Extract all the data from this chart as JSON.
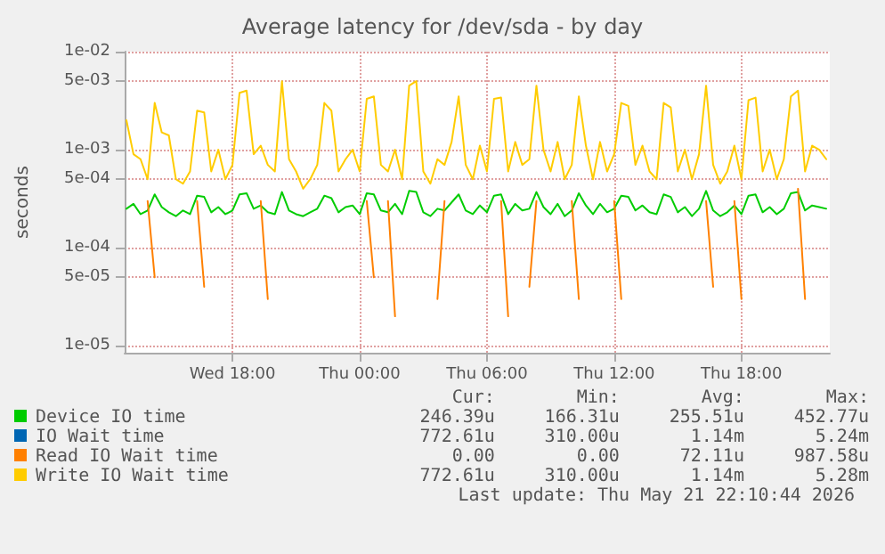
{
  "chart_data": {
    "type": "line",
    "title": "Average latency for /dev/sda - by day",
    "ylabel": "seconds",
    "log": "y",
    "grid": true,
    "legend": "bottom",
    "marker": "none",
    "line_style": "solid",
    "xlim": [
      "2026-05-20T12:55",
      "2026-05-21T22:10"
    ],
    "xticks": [
      {
        "value": "2026-05-20T18:00",
        "label": "Wed 18:00"
      },
      {
        "value": "2026-05-21T00:00",
        "label": "Thu 00:00"
      },
      {
        "value": "2026-05-21T06:00",
        "label": "Thu 06:00"
      },
      {
        "value": "2026-05-21T12:00",
        "label": "Thu 12:00"
      },
      {
        "value": "2026-05-21T18:00",
        "label": "Thu 18:00"
      }
    ],
    "ylim": [
      8.5e-06,
      0.01
    ],
    "yticks": [
      {
        "value": 1e-05,
        "label": "1e-05"
      },
      {
        "value": 5e-05,
        "label": "5e-05"
      },
      {
        "value": 0.0001,
        "label": "1e-04"
      },
      {
        "value": 0.0005,
        "label": "5e-04"
      },
      {
        "value": 0.001,
        "label": "1e-03"
      },
      {
        "value": 0.005,
        "label": "5e-03"
      },
      {
        "value": 0.01,
        "label": "1e-02"
      }
    ],
    "x": [
      "2026-05-20T13:00",
      "2026-05-20T13:20",
      "2026-05-20T13:40",
      "2026-05-20T14:00",
      "2026-05-20T14:20",
      "2026-05-20T14:40",
      "2026-05-20T15:00",
      "2026-05-20T15:20",
      "2026-05-20T15:40",
      "2026-05-20T16:00",
      "2026-05-20T16:20",
      "2026-05-20T16:40",
      "2026-05-20T17:00",
      "2026-05-20T17:20",
      "2026-05-20T17:40",
      "2026-05-20T18:00",
      "2026-05-20T18:20",
      "2026-05-20T18:40",
      "2026-05-20T19:00",
      "2026-05-20T19:20",
      "2026-05-20T19:40",
      "2026-05-20T20:00",
      "2026-05-20T20:20",
      "2026-05-20T20:40",
      "2026-05-20T21:00",
      "2026-05-20T21:20",
      "2026-05-20T21:40",
      "2026-05-20T22:00",
      "2026-05-20T22:20",
      "2026-05-20T22:40",
      "2026-05-20T23:00",
      "2026-05-20T23:20",
      "2026-05-20T23:40",
      "2026-05-21T00:00",
      "2026-05-21T00:20",
      "2026-05-21T00:40",
      "2026-05-21T01:00",
      "2026-05-21T01:20",
      "2026-05-21T01:40",
      "2026-05-21T02:00",
      "2026-05-21T02:20",
      "2026-05-21T02:40",
      "2026-05-21T03:00",
      "2026-05-21T03:20",
      "2026-05-21T03:40",
      "2026-05-21T04:00",
      "2026-05-21T04:20",
      "2026-05-21T04:40",
      "2026-05-21T05:00",
      "2026-05-21T05:20",
      "2026-05-21T05:40",
      "2026-05-21T06:00",
      "2026-05-21T06:20",
      "2026-05-21T06:40",
      "2026-05-21T07:00",
      "2026-05-21T07:20",
      "2026-05-21T07:40",
      "2026-05-21T08:00",
      "2026-05-21T08:20",
      "2026-05-21T08:40",
      "2026-05-21T09:00",
      "2026-05-21T09:20",
      "2026-05-21T09:40",
      "2026-05-21T10:00",
      "2026-05-21T10:20",
      "2026-05-21T10:40",
      "2026-05-21T11:00",
      "2026-05-21T11:20",
      "2026-05-21T11:40",
      "2026-05-21T12:00",
      "2026-05-21T12:20",
      "2026-05-21T12:40",
      "2026-05-21T13:00",
      "2026-05-21T13:20",
      "2026-05-21T13:40",
      "2026-05-21T14:00",
      "2026-05-21T14:20",
      "2026-05-21T14:40",
      "2026-05-21T15:00",
      "2026-05-21T15:20",
      "2026-05-21T15:40",
      "2026-05-21T16:00",
      "2026-05-21T16:20",
      "2026-05-21T16:40",
      "2026-05-21T17:00",
      "2026-05-21T17:20",
      "2026-05-21T17:40",
      "2026-05-21T18:00",
      "2026-05-21T18:20",
      "2026-05-21T18:40",
      "2026-05-21T19:00",
      "2026-05-21T19:20",
      "2026-05-21T19:40",
      "2026-05-21T20:00",
      "2026-05-21T20:20",
      "2026-05-21T20:40",
      "2026-05-21T21:00",
      "2026-05-21T21:20",
      "2026-05-21T21:40",
      "2026-05-21T22:00"
    ],
    "series": [
      {
        "name": "Device IO time",
        "color": "#00cc00",
        "values": [
          0.00025,
          0.00028,
          0.00022,
          0.00024,
          0.00035,
          0.00026,
          0.00023,
          0.00021,
          0.00024,
          0.00022,
          0.00034,
          0.00033,
          0.00023,
          0.00026,
          0.00022,
          0.00024,
          0.00035,
          0.00036,
          0.00025,
          0.00027,
          0.00023,
          0.00022,
          0.00037,
          0.00024,
          0.00022,
          0.00021,
          0.00023,
          0.00025,
          0.00034,
          0.00032,
          0.00023,
          0.00026,
          0.00027,
          0.00022,
          0.00036,
          0.00035,
          0.00024,
          0.00023,
          0.00028,
          0.00022,
          0.00038,
          0.00037,
          0.00023,
          0.00021,
          0.00025,
          0.00024,
          0.00029,
          0.00035,
          0.00024,
          0.00022,
          0.00027,
          0.00023,
          0.00034,
          0.00035,
          0.00022,
          0.00028,
          0.00024,
          0.00025,
          0.00037,
          0.00026,
          0.00022,
          0.00028,
          0.00021,
          0.00024,
          0.00036,
          0.00027,
          0.00022,
          0.00028,
          0.00023,
          0.00025,
          0.00034,
          0.00033,
          0.00024,
          0.00027,
          0.00023,
          0.00022,
          0.00035,
          0.00033,
          0.00023,
          0.00026,
          0.00021,
          0.00025,
          0.00038,
          0.00024,
          0.00021,
          0.00023,
          0.00027,
          0.00022,
          0.00034,
          0.00035,
          0.00023,
          0.00026,
          0.00022,
          0.00025,
          0.00036,
          0.00037,
          0.00024,
          0.00027,
          0.00026,
          0.00025
        ]
      },
      {
        "name": "IO Wait time",
        "color": "#0066b3",
        "values": [
          null,
          null,
          null,
          null,
          null,
          null,
          null,
          null,
          null,
          null,
          null,
          null,
          null,
          null,
          null,
          null,
          null,
          null,
          null,
          null,
          null,
          null,
          null,
          null,
          null,
          null,
          null,
          null,
          null,
          null,
          null,
          null,
          null,
          null,
          null,
          null,
          null,
          null,
          null,
          null,
          null,
          null,
          null,
          null,
          null,
          null,
          null,
          null,
          null,
          null,
          null,
          null,
          null,
          null,
          null,
          null,
          null,
          null,
          null,
          null,
          null,
          null,
          null,
          null,
          null,
          null,
          null,
          null,
          null,
          null,
          null,
          null,
          null,
          null,
          null,
          null,
          null,
          null,
          null,
          null,
          null,
          null,
          null,
          null,
          null,
          null,
          null,
          null,
          null,
          null,
          null,
          null,
          null,
          null,
          null,
          null,
          null,
          null,
          null,
          null
        ]
      },
      {
        "name": "Read IO Wait time",
        "color": "#ff8000",
        "values": [
          null,
          null,
          null,
          0.0003,
          5e-05,
          null,
          null,
          null,
          null,
          null,
          0.0003,
          4e-05,
          null,
          null,
          null,
          null,
          null,
          null,
          null,
          0.0003,
          3e-05,
          null,
          null,
          null,
          null,
          null,
          null,
          null,
          null,
          null,
          null,
          null,
          null,
          null,
          0.0003,
          5e-05,
          null,
          0.0003,
          2e-05,
          null,
          null,
          null,
          null,
          null,
          3e-05,
          0.0003,
          null,
          null,
          null,
          null,
          null,
          null,
          null,
          0.0003,
          2e-05,
          null,
          null,
          4e-05,
          0.0003,
          null,
          null,
          null,
          null,
          0.0003,
          3e-05,
          null,
          null,
          null,
          null,
          0.0003,
          3e-05,
          null,
          null,
          null,
          null,
          null,
          null,
          null,
          null,
          null,
          null,
          null,
          0.0003,
          4e-05,
          null,
          null,
          0.0003,
          3e-05,
          null,
          null,
          null,
          null,
          null,
          null,
          null,
          0.0004,
          3e-05,
          null,
          null,
          null
        ]
      },
      {
        "name": "Write IO Wait time",
        "color": "#ffcc00",
        "values": [
          0.002,
          0.0009,
          0.0008,
          0.0005,
          0.003,
          0.0015,
          0.0014,
          0.0005,
          0.00045,
          0.0006,
          0.0025,
          0.0024,
          0.0006,
          0.001,
          0.0005,
          0.0007,
          0.0038,
          0.004,
          0.0009,
          0.0011,
          0.0007,
          0.0006,
          0.005,
          0.0008,
          0.0006,
          0.0004,
          0.0005,
          0.0007,
          0.003,
          0.0025,
          0.0006,
          0.0008,
          0.001,
          0.0006,
          0.0033,
          0.0035,
          0.0007,
          0.0006,
          0.001,
          0.0005,
          0.0045,
          0.005,
          0.0006,
          0.00045,
          0.0008,
          0.0007,
          0.0012,
          0.0035,
          0.0007,
          0.0005,
          0.0011,
          0.0006,
          0.0033,
          0.0034,
          0.0006,
          0.0012,
          0.0007,
          0.0008,
          0.0045,
          0.001,
          0.0006,
          0.0012,
          0.0005,
          0.0007,
          0.0035,
          0.0011,
          0.0005,
          0.0012,
          0.0006,
          0.0009,
          0.003,
          0.0028,
          0.0007,
          0.0011,
          0.0006,
          0.0005,
          0.003,
          0.0027,
          0.0006,
          0.001,
          0.0005,
          0.0009,
          0.0045,
          0.0007,
          0.00045,
          0.0006,
          0.0011,
          0.0005,
          0.0032,
          0.0034,
          0.0006,
          0.001,
          0.0005,
          0.0008,
          0.0035,
          0.004,
          0.0006,
          0.0011,
          0.001,
          0.0008
        ]
      }
    ],
    "annotations": [
      "Cur:",
      "Min:",
      "Avg:",
      "Max:",
      "246.39u",
      "166.31u",
      "255.51u",
      "452.77u",
      "772.61u",
      "310.00u",
      "1.14m",
      "5.24m",
      "0.00",
      "0.00",
      "72.11u",
      "987.58u",
      "772.61u",
      "310.00u",
      "1.14m",
      "5.28m",
      "Last update: Thu May 21 22:10:44 2026"
    ]
  }
}
